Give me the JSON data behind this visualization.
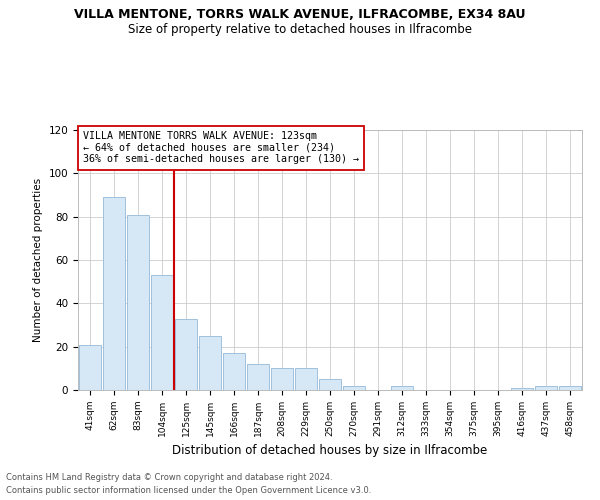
{
  "title1": "VILLA MENTONE, TORRS WALK AVENUE, ILFRACOMBE, EX34 8AU",
  "title2": "Size of property relative to detached houses in Ilfracombe",
  "xlabel": "Distribution of detached houses by size in Ilfracombe",
  "ylabel": "Number of detached properties",
  "categories": [
    "41sqm",
    "62sqm",
    "83sqm",
    "104sqm",
    "125sqm",
    "145sqm",
    "166sqm",
    "187sqm",
    "208sqm",
    "229sqm",
    "250sqm",
    "270sqm",
    "291sqm",
    "312sqm",
    "333sqm",
    "354sqm",
    "375sqm",
    "395sqm",
    "416sqm",
    "437sqm",
    "458sqm"
  ],
  "values": [
    21,
    89,
    81,
    53,
    33,
    25,
    17,
    12,
    10,
    10,
    5,
    2,
    0,
    2,
    0,
    0,
    0,
    0,
    1,
    2,
    2
  ],
  "bar_color": "#d6e8f5",
  "bar_edge_color": "#a0c0dc",
  "vline_index": 4,
  "annotation_line1": "VILLA MENTONE TORRS WALK AVENUE: 123sqm",
  "annotation_line2": "← 64% of detached houses are smaller (234)",
  "annotation_line3": "36% of semi-detached houses are larger (130) →",
  "vline_color": "#cc0000",
  "annotation_box_edge_color": "#cc0000",
  "footer_line1": "Contains HM Land Registry data © Crown copyright and database right 2024.",
  "footer_line2": "Contains public sector information licensed under the Open Government Licence v3.0.",
  "ylim": [
    0,
    120
  ],
  "yticks": [
    0,
    20,
    40,
    60,
    80,
    100,
    120
  ],
  "background_color": "#ffffff",
  "grid_color": "#cccccc"
}
